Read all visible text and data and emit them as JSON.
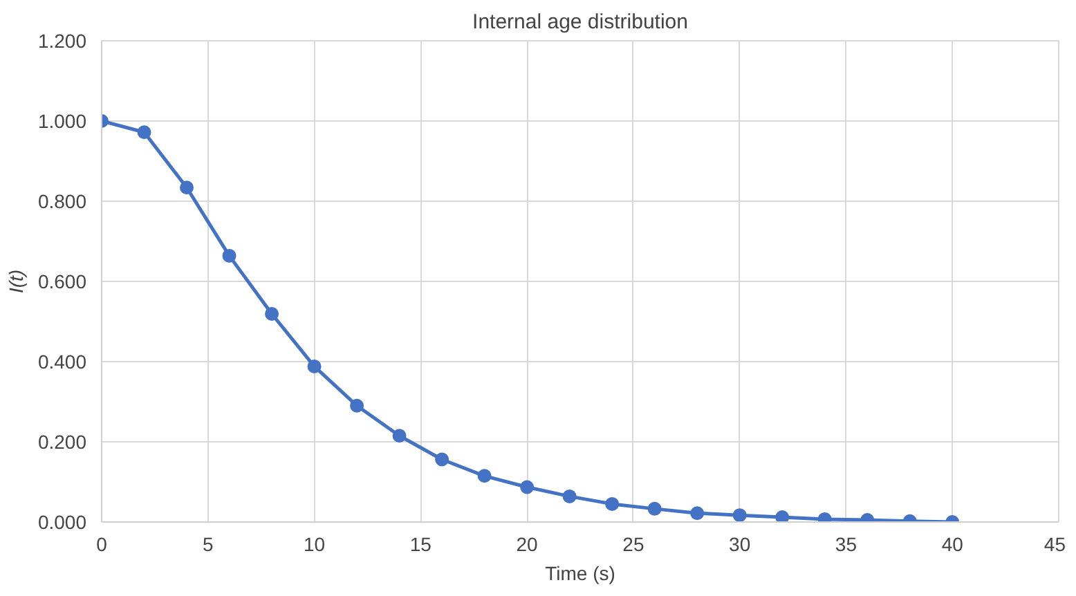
{
  "chart_data": {
    "type": "line",
    "title": "Internal age distribution",
    "xlabel": "Time (s)",
    "ylabel": "I(t)",
    "x": [
      0,
      2,
      4,
      6,
      8,
      10,
      12,
      14,
      16,
      18,
      20,
      22,
      24,
      26,
      28,
      30,
      32,
      34,
      36,
      38,
      40
    ],
    "series": [
      {
        "color": "#4472c4",
        "values": [
          1.0,
          0.972,
          0.834,
          0.664,
          0.519,
          0.388,
          0.29,
          0.215,
          0.156,
          0.115,
          0.087,
          0.064,
          0.045,
          0.033,
          0.022,
          0.017,
          0.012,
          0.007,
          0.005,
          0.002,
          0.0
        ]
      }
    ],
    "xlim": [
      0,
      45
    ],
    "xticks": [
      0,
      5,
      10,
      15,
      20,
      25,
      30,
      35,
      40,
      45
    ],
    "ylim": [
      0,
      1.2
    ],
    "yticks": [
      {
        "value": 0,
        "label": "0.000"
      },
      {
        "value": 0.2,
        "label": "0.200"
      },
      {
        "value": 0.4,
        "label": "0.400"
      },
      {
        "value": 0.6,
        "label": "0.600"
      },
      {
        "value": 0.8,
        "label": "0.800"
      },
      {
        "value": 1.0,
        "label": "1.000"
      },
      {
        "value": 1.2,
        "label": "1.200"
      }
    ],
    "grid": true,
    "marker": "circle",
    "line_style": "solid"
  }
}
